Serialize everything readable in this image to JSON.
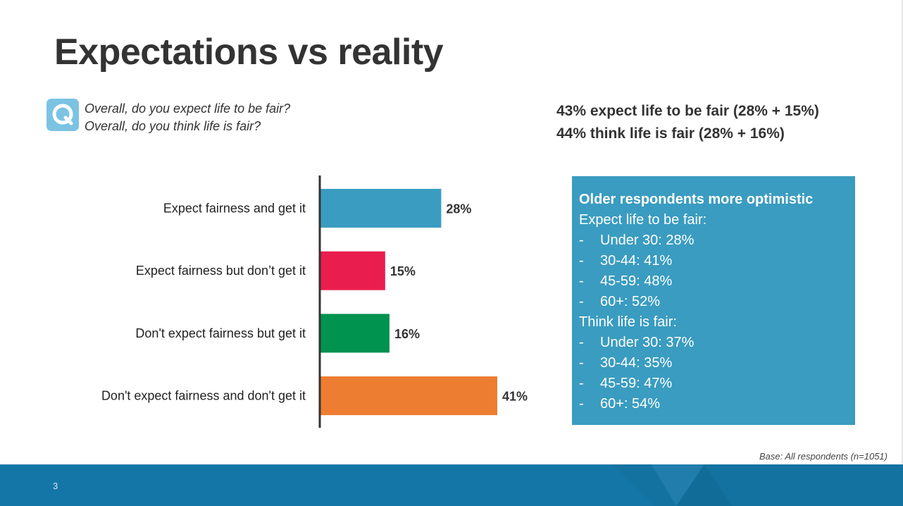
{
  "title": "Expectations vs reality",
  "question": {
    "icon": "q-icon",
    "line1": "Overall, do you expect life to be fair?",
    "line2": "Overall, do you think life is fair?"
  },
  "summary": {
    "line1": "43% expect life to be fair (28% + 15%)",
    "line2": "44% think life is fair (28% + 16%)"
  },
  "chart_data": {
    "type": "bar",
    "orientation": "horizontal",
    "categories": [
      "Expect fairness and get it",
      "Expect fairness but don’t get it",
      "Don't expect fairness but get it",
      "Don't expect fairness and don't get it"
    ],
    "values": [
      28,
      15,
      16,
      41
    ],
    "value_labels": [
      "28%",
      "15%",
      "16%",
      "41%"
    ],
    "colors": [
      "#3a9cc0",
      "#e91e4e",
      "#00924f",
      "#ed7d31"
    ],
    "xlim": [
      0,
      50
    ]
  },
  "infobox": {
    "heading": "Older respondents more optimistic",
    "groups": [
      {
        "label": "Expect life to be fair:",
        "items": [
          "Under 30: 28%",
          "30-44: 41%",
          "45-59: 48%",
          "60+: 52%"
        ]
      },
      {
        "label": "Think life is fair:",
        "items": [
          "Under 30: 37%",
          "30-44: 35%",
          "45-59: 47%",
          "60+: 54%"
        ]
      }
    ],
    "color": "#3a9cc0"
  },
  "base_note": "Base: All respondents (n=1051)",
  "page_number": "3",
  "colors": {
    "footer": "#1376a6",
    "title": "#333333"
  }
}
